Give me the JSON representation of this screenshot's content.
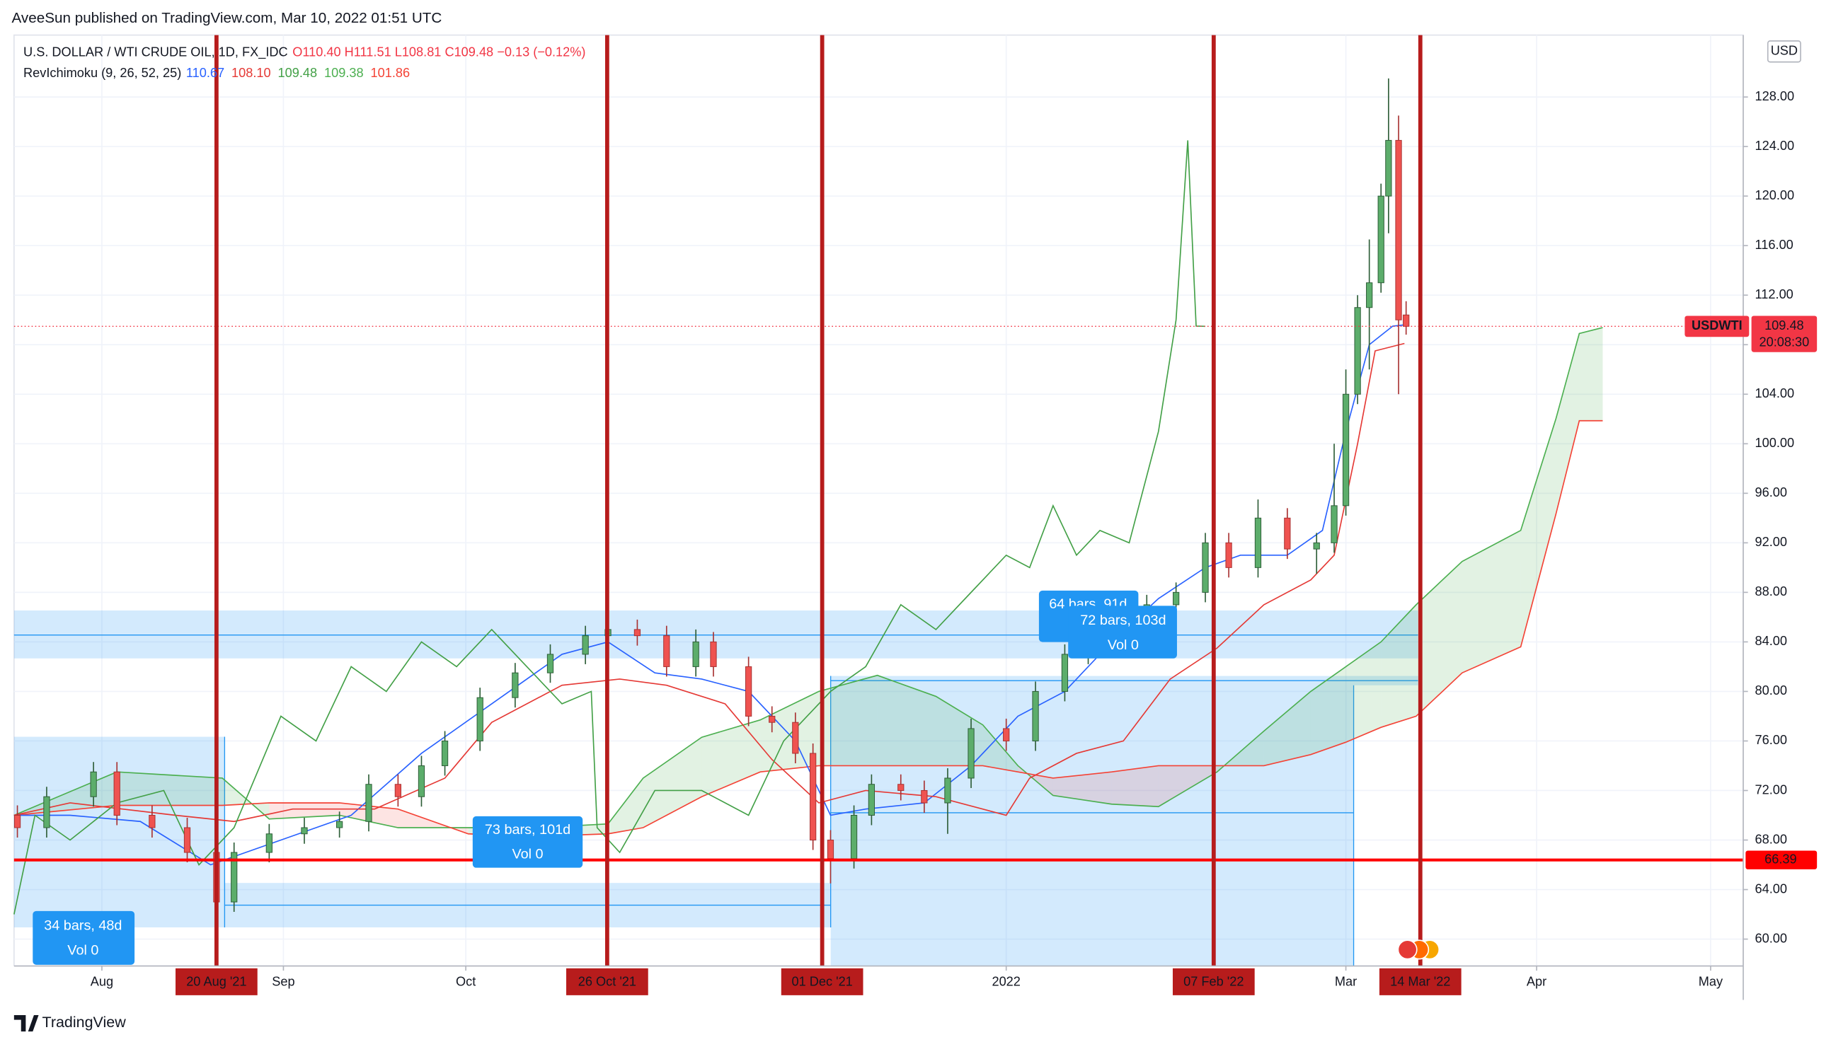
{
  "header": "AveeSun published on TradingView.com, Mar 10, 2022 01:51 UTC",
  "footer": "TradingView",
  "chart_data": {
    "type": "candlestick",
    "title": "U.S. DOLLAR / WTI CRUDE OIL, 1D, FX_IDC",
    "quote": "O110.40  H111.51  L108.81  C109.48  −0.13 (−0.12%)",
    "indicator": "RevIchimoku (9, 26, 52, 25)",
    "currency": "USD",
    "symbol": "USDWTI",
    "countdown": "20:08:30",
    "last_price": 109.48,
    "last_price_color": "#f23645",
    "hline": {
      "value": 66.39,
      "color": "#ff0000"
    },
    "marker_color": "#b71c1c",
    "markers": [
      {
        "x": 24.2,
        "label": "20 Aug '21"
      },
      {
        "x": 70.9,
        "label": "26 Oct '21"
      },
      {
        "x": 96.6,
        "label": "01 Dec '21"
      },
      {
        "x": 143.4,
        "label": "07 Feb '22"
      },
      {
        "x": 168.1,
        "label": "14 Mar '22"
      }
    ],
    "annotations": [
      {
        "text": "34 bars, 48d",
        "detail": "Vol 0"
      },
      {
        "text": "73 bars, 101d",
        "detail": "Vol 0"
      },
      {
        "text": "64 bars, 91d"
      },
      {
        "text": "72 bars, 103d",
        "detail": "Vol 0"
      }
    ],
    "grid": true,
    "xlim": [
      0,
      206.7
    ],
    "xticks": [
      {
        "value": 10.5,
        "label": "Aug"
      },
      {
        "value": 32.2,
        "label": "Sep"
      },
      {
        "value": 54,
        "label": "Oct"
      },
      {
        "value": 118.6,
        "label": "2022"
      },
      {
        "value": 159.2,
        "label": "Mar"
      },
      {
        "value": 182,
        "label": "Apr"
      },
      {
        "value": 202.8,
        "label": "May"
      }
    ],
    "ylim": [
      57.83,
      133.0
    ],
    "yticks": [
      {
        "value": 60,
        "label": "60.00"
      },
      {
        "value": 64,
        "label": "64.00"
      },
      {
        "value": 68,
        "label": "68.00"
      },
      {
        "value": 72,
        "label": "72.00"
      },
      {
        "value": 76,
        "label": "76.00"
      },
      {
        "value": 80,
        "label": "80.00"
      },
      {
        "value": 84,
        "label": "84.00"
      },
      {
        "value": 88,
        "label": "88.00"
      },
      {
        "value": 92,
        "label": "92.00"
      },
      {
        "value": 96,
        "label": "96.00"
      },
      {
        "value": 100,
        "label": "100.00"
      },
      {
        "value": 104,
        "label": "104.00"
      },
      {
        "value": 108,
        "label": "108.00"
      },
      {
        "value": 112,
        "label": "112.00"
      },
      {
        "value": 116,
        "label": "116.00"
      },
      {
        "value": 120,
        "label": "120.00"
      },
      {
        "value": 124,
        "label": "124.00"
      },
      {
        "value": 128,
        "label": "128.00"
      }
    ],
    "candles": {
      "up_color": "#5cad6b",
      "up_border": "#2e5e38",
      "down_color": "#ef5350",
      "down_border": "#a83232",
      "x": [
        0.4,
        3.9,
        9.5,
        12.3,
        16.5,
        20.7,
        24.2,
        26.3,
        30.5,
        34.7,
        38.9,
        42.4,
        45.9,
        48.7,
        51.5,
        55.7,
        59.9,
        64.1,
        68.3,
        71.0,
        74.5,
        78.0,
        81.5,
        83.6,
        87.8,
        90.6,
        93.4,
        95.5,
        97.6,
        100.4,
        102.5,
        106.0,
        108.8,
        111.6,
        114.4,
        118.6,
        122.1,
        125.6,
        128.4,
        131.9,
        135.4,
        138.9,
        142.4,
        145.2,
        148.7,
        152.2,
        155.7,
        157.8,
        159.2,
        160.6,
        162.0,
        163.4,
        164.3,
        165.5,
        166.4
      ],
      "open": [
        70,
        69,
        71.5,
        73.5,
        70,
        69,
        67,
        63,
        67,
        68.5,
        69,
        69.5,
        72.5,
        71.5,
        74,
        76,
        79.5,
        81.5,
        83,
        84.5,
        85,
        84.5,
        82,
        84,
        82,
        78,
        77.5,
        75,
        68,
        66.5,
        70,
        72.5,
        72,
        71,
        73,
        77,
        76,
        80,
        83,
        84,
        85,
        87,
        88,
        92,
        90,
        94,
        91.5,
        92,
        95,
        104,
        111,
        113,
        120,
        124.5,
        110.4
      ],
      "high": [
        70.8,
        72.3,
        74.3,
        74.3,
        70.8,
        69.8,
        67.8,
        67.8,
        69.3,
        69.8,
        70.3,
        73.3,
        73.3,
        74.8,
        76.8,
        80.3,
        82.3,
        83.8,
        85.3,
        85.8,
        85.8,
        85.3,
        85.0,
        84.8,
        82.8,
        78.8,
        78.3,
        75.8,
        68.8,
        70.8,
        73.3,
        73.3,
        72.8,
        73.8,
        77.8,
        77.8,
        80.8,
        83.8,
        84.8,
        85.8,
        87.8,
        88.8,
        92.8,
        92.8,
        95.5,
        94.8,
        92.8,
        100,
        106,
        112,
        116.5,
        121,
        129.5,
        126.5,
        111.51
      ],
      "low": [
        68.2,
        68.2,
        70.7,
        69.2,
        68.2,
        66.2,
        62.0,
        62.2,
        66.2,
        67.7,
        68.2,
        68.7,
        70.7,
        70.7,
        73.2,
        75.2,
        78.7,
        80.7,
        82.2,
        83.7,
        83.7,
        81.2,
        81.2,
        81.2,
        77.2,
        76.7,
        74.2,
        67.2,
        64.5,
        65.7,
        69.2,
        71.2,
        70.2,
        68.5,
        72.2,
        75.2,
        75.2,
        79.2,
        82.2,
        83.2,
        84.2,
        86.2,
        87.2,
        89.2,
        89.2,
        90.7,
        89.5,
        91.2,
        94.2,
        103.2,
        106,
        112.2,
        117,
        104,
        108.81
      ],
      "close": [
        69,
        71.5,
        73.5,
        70,
        69,
        67,
        63,
        67,
        68.5,
        69,
        69.5,
        72.5,
        71.5,
        74,
        76,
        79.5,
        81.5,
        83,
        84.5,
        85,
        84.5,
        82,
        84,
        82,
        78,
        77.5,
        75,
        68,
        66.5,
        70,
        72.5,
        72,
        71,
        73,
        77,
        76,
        80,
        83,
        84,
        85,
        87,
        88,
        92,
        90,
        94,
        91.5,
        92,
        95,
        104,
        111,
        113,
        120,
        124.5,
        110,
        109.48
      ]
    },
    "lines": [
      {
        "color": "#2962ff",
        "last_value": 110.67,
        "x": [
          0,
          6.7,
          15.1,
          23.5,
          31.9,
          40.3,
          48.7,
          57.1,
          65.5,
          71.0,
          76.6,
          82.2,
          87.8,
          93.4,
          97.6,
          101.8,
          108.8,
          114.4,
          120.0,
          125.6,
          131.2,
          136.8,
          142.4,
          146.6,
          152.2,
          156.4,
          159.2,
          162.0,
          164.8,
          166.2
        ],
        "values": [
          70,
          70,
          69.5,
          66,
          68,
          70,
          75,
          79,
          83,
          84,
          81.5,
          81,
          80,
          76,
          70,
          70.5,
          71,
          74,
          78,
          80,
          84,
          87.5,
          90,
          91,
          91,
          93,
          101,
          108,
          109.5,
          109.6
        ]
      },
      {
        "color": "#e53935",
        "last_value": {
          "value": 108.1,
          "label": "108.10"
        },
        "x": [
          0,
          6.7,
          19.3,
          26.3,
          33.3,
          43.1,
          51.5,
          57.1,
          65.5,
          72.4,
          78.0,
          85.0,
          90.6,
          96.2,
          101.8,
          110.2,
          118.6,
          121.4,
          127.0,
          132.6,
          138.2,
          143.8,
          149.4,
          155.0,
          157.8,
          160.6,
          162.7,
          166.2
        ],
        "values": [
          70,
          71,
          70,
          69.5,
          70.5,
          70.5,
          73,
          77.5,
          80.5,
          81,
          80.5,
          79,
          74.5,
          71,
          72,
          71.5,
          70,
          73,
          75,
          76,
          81,
          83.5,
          87,
          89,
          91,
          100,
          107.5,
          108.1
        ]
      },
      {
        "color": "#43a047",
        "last_value": 109.48,
        "x": [
          0,
          2.5,
          6.7,
          12.3,
          17.9,
          22.1,
          26.3,
          31.9,
          36.1,
          40.3,
          44.5,
          48.7,
          52.9,
          57.1,
          61.3,
          65.5,
          69.0,
          69.7,
          72.4,
          76.6,
          82.2,
          87.8,
          92.0,
          97.6,
          101.8,
          106.0,
          110.2,
          114.4,
          118.6,
          121.4,
          124.2,
          127.0,
          129.8,
          133.3,
          136.8,
          138.9,
          140.3,
          141.3,
          142.4
        ],
        "values": [
          62,
          70,
          68,
          71,
          72,
          66,
          69,
          78,
          76,
          82,
          80,
          84,
          82,
          85,
          82,
          79,
          80,
          69,
          67,
          72,
          72,
          70,
          76,
          80,
          82,
          87,
          85,
          88,
          91,
          90,
          95,
          91,
          93,
          92,
          101,
          110,
          124.5,
          109.5,
          109.48
        ]
      }
    ],
    "cloud": {
      "up_fill": "rgba(76,175,80,0.16)",
      "down_fill": "rgba(244,67,54,0.14)",
      "x": [
        0,
        12.3,
        24.9,
        30.5,
        38.9,
        45.9,
        54.3,
        62.7,
        71.0,
        75.2,
        82.2,
        89.2,
        96.2,
        103.2,
        110.2,
        115.8,
        120.0,
        124.2,
        131.2,
        136.8,
        143.8,
        149.4,
        155.0,
        159.2,
        163.4,
        167.6,
        173.1,
        180.1,
        184.3,
        187.1,
        189.9
      ],
      "span_a": {
        "color": "#4caf50",
        "last_value": 109.38,
        "values": [
          70,
          73.5,
          73,
          69.7,
          70,
          69,
          69,
          69,
          69.3,
          73,
          76.3,
          77.7,
          80,
          81.3,
          79.6,
          77.3,
          74,
          71.6,
          70.9,
          70.7,
          73.5,
          76.8,
          80,
          82,
          84,
          87,
          90.5,
          93,
          102,
          108.9,
          109.38
        ]
      },
      "span_b": {
        "color": "#f44336",
        "last_value": 101.86,
        "values": [
          70,
          70.8,
          70.8,
          71,
          71,
          70.5,
          68.5,
          68.3,
          68.5,
          69,
          71.5,
          73.5,
          74,
          74,
          74,
          74,
          73.5,
          73,
          73.5,
          74,
          74,
          74,
          74.9,
          75.9,
          77.1,
          78,
          81.5,
          83.6,
          94.3,
          101.86,
          101.86
        ]
      }
    }
  }
}
